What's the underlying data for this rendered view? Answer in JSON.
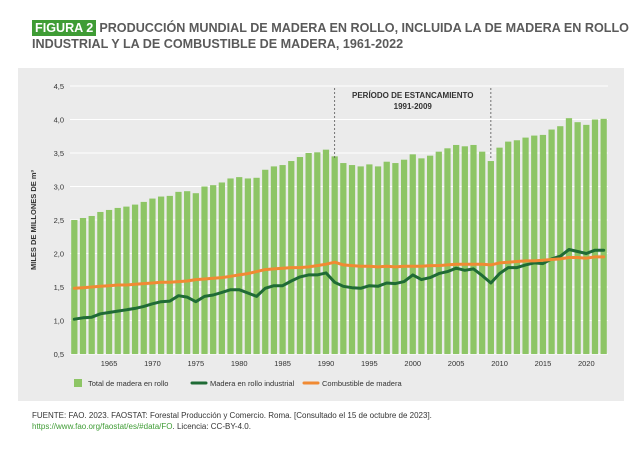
{
  "header": {
    "figure_label": "FIGURA 2",
    "title_line1": "PRODUCCIÓN MUNDIAL DE MADERA EN ROLLO, INCLUIDA LA DE MADERA EN ROLLO",
    "title_line2": "INDUSTRIAL Y LA DE COMBUSTIBLE DE MADERA, 1961-2022"
  },
  "footer": {
    "source": "FUENTE: FAO. 2023. FAOSTAT: Forestal Producción y Comercio. Roma. [Consultado el 15 de octubre de 2023].",
    "link": "https://www.fao.org/faostat/es/#data/FO",
    "license": ". Licencia: CC-BY-4.0."
  },
  "colors": {
    "bars": "#8dc565",
    "industrial": "#1f6b35",
    "fuel": "#f08a33",
    "panel_bg": "#ebebeb",
    "badge": "#3f9c35"
  },
  "chart_data": {
    "type": "bar",
    "ylabel": "MILES DE MILLONES DE m³",
    "ylim": [
      0.5,
      4.5
    ],
    "yticks": [
      "0,5",
      "1,0",
      "1,5",
      "2,0",
      "2,5",
      "3,0",
      "3,5",
      "4,0",
      "4,5"
    ],
    "xticks": [
      1965,
      1970,
      1975,
      1980,
      1985,
      1990,
      1995,
      2000,
      2005,
      2010,
      2015,
      2020
    ],
    "grid": true,
    "legend_position": "bottom-left",
    "annotation": {
      "line1": "PERÍODO DE ESTANCAMIENTO",
      "line2": "1991-2009",
      "x_start": 1991,
      "x_end": 2009
    },
    "x": [
      1961,
      1962,
      1963,
      1964,
      1965,
      1966,
      1967,
      1968,
      1969,
      1970,
      1971,
      1972,
      1973,
      1974,
      1975,
      1976,
      1977,
      1978,
      1979,
      1980,
      1981,
      1982,
      1983,
      1984,
      1985,
      1986,
      1987,
      1988,
      1989,
      1990,
      1991,
      1992,
      1993,
      1994,
      1995,
      1996,
      1997,
      1998,
      1999,
      2000,
      2001,
      2002,
      2003,
      2004,
      2005,
      2006,
      2007,
      2008,
      2009,
      2010,
      2011,
      2012,
      2013,
      2014,
      2015,
      2016,
      2017,
      2018,
      2019,
      2020,
      2021,
      2022
    ],
    "series": [
      {
        "name": "Total de madera en rollo",
        "type": "bar",
        "values": [
          2.5,
          2.53,
          2.56,
          2.62,
          2.65,
          2.68,
          2.7,
          2.73,
          2.77,
          2.82,
          2.85,
          2.86,
          2.92,
          2.93,
          2.9,
          3.0,
          3.02,
          3.06,
          3.12,
          3.14,
          3.12,
          3.13,
          3.25,
          3.3,
          3.32,
          3.38,
          3.44,
          3.5,
          3.51,
          3.55,
          3.45,
          3.35,
          3.32,
          3.3,
          3.33,
          3.3,
          3.37,
          3.35,
          3.4,
          3.48,
          3.42,
          3.46,
          3.52,
          3.57,
          3.62,
          3.6,
          3.62,
          3.52,
          3.38,
          3.58,
          3.67,
          3.69,
          3.73,
          3.76,
          3.77,
          3.85,
          3.9,
          4.02,
          3.96,
          3.92,
          4.0,
          4.01
        ]
      },
      {
        "name": "Madera en rollo industrial",
        "type": "line",
        "values": [
          1.02,
          1.04,
          1.05,
          1.1,
          1.12,
          1.14,
          1.16,
          1.18,
          1.21,
          1.25,
          1.28,
          1.29,
          1.37,
          1.35,
          1.28,
          1.36,
          1.38,
          1.42,
          1.46,
          1.46,
          1.41,
          1.36,
          1.48,
          1.52,
          1.52,
          1.59,
          1.65,
          1.68,
          1.68,
          1.71,
          1.57,
          1.51,
          1.49,
          1.48,
          1.52,
          1.51,
          1.56,
          1.55,
          1.58,
          1.68,
          1.61,
          1.64,
          1.7,
          1.73,
          1.78,
          1.75,
          1.77,
          1.67,
          1.56,
          1.7,
          1.79,
          1.79,
          1.83,
          1.86,
          1.85,
          1.92,
          1.96,
          2.06,
          2.03,
          2.0,
          2.05,
          2.05
        ]
      },
      {
        "name": "Combustible de madera",
        "type": "line",
        "values": [
          1.48,
          1.49,
          1.5,
          1.51,
          1.52,
          1.53,
          1.53,
          1.54,
          1.55,
          1.56,
          1.57,
          1.57,
          1.58,
          1.59,
          1.61,
          1.62,
          1.63,
          1.64,
          1.66,
          1.68,
          1.7,
          1.73,
          1.76,
          1.77,
          1.78,
          1.79,
          1.79,
          1.8,
          1.82,
          1.84,
          1.87,
          1.83,
          1.82,
          1.81,
          1.81,
          1.8,
          1.81,
          1.8,
          1.81,
          1.81,
          1.81,
          1.82,
          1.82,
          1.83,
          1.84,
          1.84,
          1.84,
          1.84,
          1.83,
          1.86,
          1.87,
          1.88,
          1.89,
          1.89,
          1.9,
          1.91,
          1.92,
          1.94,
          1.94,
          1.93,
          1.95,
          1.95
        ]
      }
    ]
  }
}
